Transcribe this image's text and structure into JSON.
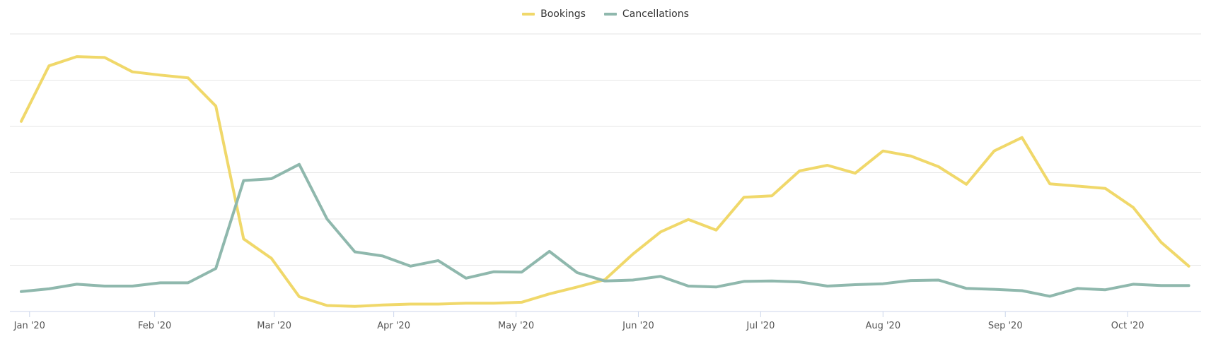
{
  "chart_data": {
    "type": "line",
    "title": "",
    "xlabel": "",
    "ylabel": "",
    "x_tick_labels": [
      "Jan '20",
      "Feb '20",
      "Mar '20",
      "Apr '20",
      "May '20",
      "Jun '20",
      "Jul '20",
      "Aug '20",
      "Sep '20",
      "Oct '20"
    ],
    "x_tick_weeks": [
      0.3,
      4.8,
      9.1,
      13.4,
      17.8,
      22.2,
      26.6,
      31.0,
      35.4,
      39.8
    ],
    "y_gridlines": 6,
    "ylim": [
      0,
      60
    ],
    "y_tick_labels_visible": false,
    "legend_position": "top-center",
    "grid": true,
    "series": [
      {
        "name": "Bookings",
        "color": "#f0d86a",
        "values": [
          41.1,
          53.1,
          55.1,
          54.9,
          51.8,
          51.1,
          50.5,
          44.4,
          15.7,
          11.5,
          3.2,
          1.3,
          1.1,
          1.4,
          1.6,
          1.6,
          1.8,
          1.8,
          2.0,
          3.8,
          5.3,
          6.9,
          12.4,
          17.2,
          19.9,
          17.6,
          24.7,
          25.0,
          30.4,
          31.6,
          29.9,
          34.7,
          33.6,
          31.3,
          27.5,
          34.7,
          37.6,
          27.6,
          27.1,
          26.6,
          22.5,
          15.0,
          9.8
        ]
      },
      {
        "name": "Cancellations",
        "color": "#8fb8ad",
        "values": [
          4.3,
          4.9,
          5.9,
          5.5,
          5.5,
          6.2,
          6.2,
          9.3,
          28.3,
          28.7,
          31.8,
          20.0,
          12.9,
          12.0,
          9.8,
          11.0,
          7.2,
          8.6,
          8.5,
          13.0,
          8.4,
          6.6,
          6.8,
          7.6,
          5.5,
          5.3,
          6.5,
          6.6,
          6.4,
          5.5,
          5.8,
          6.0,
          6.7,
          6.8,
          5.0,
          4.8,
          4.5,
          3.3,
          5.0,
          4.7,
          5.9,
          5.6,
          5.6
        ]
      }
    ]
  }
}
